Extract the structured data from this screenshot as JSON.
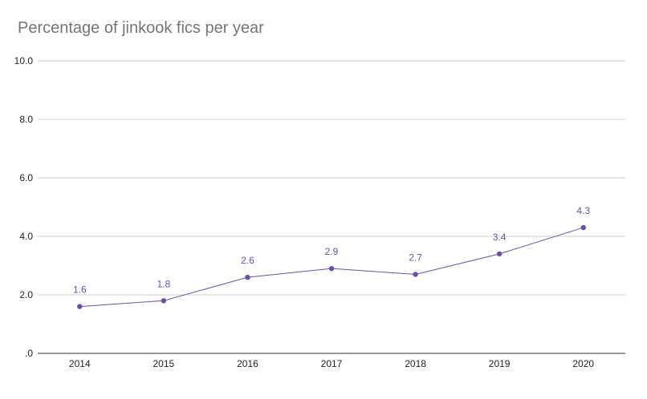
{
  "chart_data": {
    "type": "line",
    "title": "Percentage of jinkook fics per year",
    "xlabel": "",
    "ylabel": "",
    "categories": [
      "2014",
      "2015",
      "2016",
      "2017",
      "2018",
      "2019",
      "2020"
    ],
    "series": [
      {
        "name": "Percentage of jinkook fics",
        "values": [
          1.6,
          1.8,
          2.6,
          2.9,
          2.7,
          3.4,
          4.3
        ],
        "labels": [
          "1.6",
          "1.8",
          "2.6",
          "2.9",
          "2.7",
          "3.4",
          "4.3"
        ],
        "color": "#6a4fa8"
      }
    ],
    "ylim": [
      0,
      10
    ],
    "yticks": [
      0,
      2,
      4,
      6,
      8,
      10
    ],
    "ytick_labels": [
      ".0",
      "2.0",
      "4.0",
      "6.0",
      "8.0",
      "10.0"
    ],
    "grid": true,
    "legend": "none"
  },
  "colors": {
    "gridline": "#cccccc",
    "axis": "#333333",
    "title": "#757575"
  }
}
